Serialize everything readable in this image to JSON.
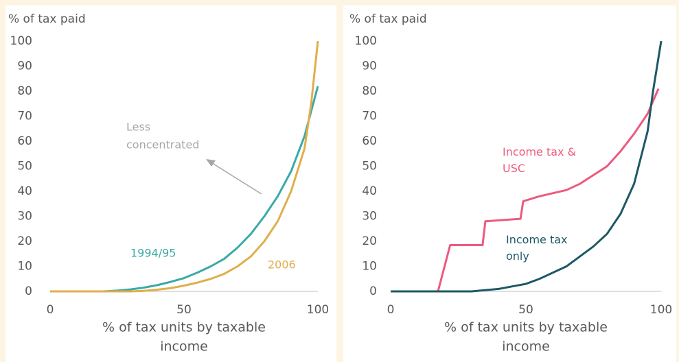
{
  "chart_data": [
    {
      "type": "line",
      "ylabel": "% of tax paid",
      "xlabel": [
        "% of tax units by taxable",
        "income"
      ],
      "xlim": [
        0,
        100
      ],
      "xticks": [
        0,
        50,
        100
      ],
      "ylim": [
        0,
        100
      ],
      "yticks": [
        0,
        10,
        20,
        30,
        40,
        50,
        60,
        70,
        80,
        90,
        100
      ],
      "annotations": [
        "Less",
        "concentrated"
      ],
      "series": [
        {
          "name": "1994/95",
          "color": "#3aaaa6",
          "x": [
            0,
            5,
            10,
            15,
            20,
            25,
            30,
            35,
            40,
            45,
            50,
            55,
            60,
            65,
            70,
            75,
            80,
            85,
            90,
            95,
            100
          ],
          "values": [
            0,
            0,
            0,
            0,
            0,
            0.3,
            0.8,
            1.5,
            2.5,
            3.8,
            5.3,
            7.5,
            10,
            13,
            17.5,
            23,
            30,
            38,
            48,
            62,
            82
          ]
        },
        {
          "name": "2006",
          "color": "#e0ae4c",
          "x": [
            0,
            5,
            10,
            15,
            20,
            25,
            30,
            35,
            40,
            45,
            50,
            55,
            60,
            65,
            70,
            75,
            80,
            85,
            90,
            95,
            97.5,
            100
          ],
          "values": [
            0,
            0,
            0,
            0,
            0,
            0,
            0,
            0.2,
            0.7,
            1.3,
            2.3,
            3.5,
            5,
            7,
            10,
            14,
            20,
            28,
            40,
            57,
            75,
            100
          ]
        }
      ]
    },
    {
      "type": "line",
      "ylabel": "% of tax paid",
      "xlabel": [
        "% of tax units by taxable",
        "income"
      ],
      "xlim": [
        0,
        100
      ],
      "xticks": [
        0,
        50,
        100
      ],
      "ylim": [
        0,
        100
      ],
      "yticks": [
        0,
        10,
        20,
        30,
        40,
        50,
        60,
        70,
        80,
        90,
        100
      ],
      "series": [
        {
          "name": "Income tax & USC",
          "color": "#ec5a7d",
          "x": [
            0,
            10,
            17.5,
            22,
            34,
            35,
            48,
            49,
            55,
            65,
            70,
            80,
            85,
            90,
            95,
            99
          ],
          "values": [
            0,
            0,
            0,
            18.5,
            18.5,
            28,
            29,
            36,
            38,
            40.5,
            43,
            50,
            56,
            63,
            71,
            81
          ]
        },
        {
          "name": "Income tax only",
          "color": "#1e5866",
          "x": [
            0,
            10,
            20,
            30,
            35,
            40,
            45,
            50,
            55,
            60,
            65,
            70,
            75,
            80,
            85,
            90,
            95,
            97,
            100
          ],
          "values": [
            0,
            0,
            0,
            0,
            0.5,
            1,
            2,
            3,
            5,
            7.5,
            10,
            14,
            18,
            23,
            31,
            43,
            64,
            80,
            100
          ]
        }
      ]
    }
  ]
}
